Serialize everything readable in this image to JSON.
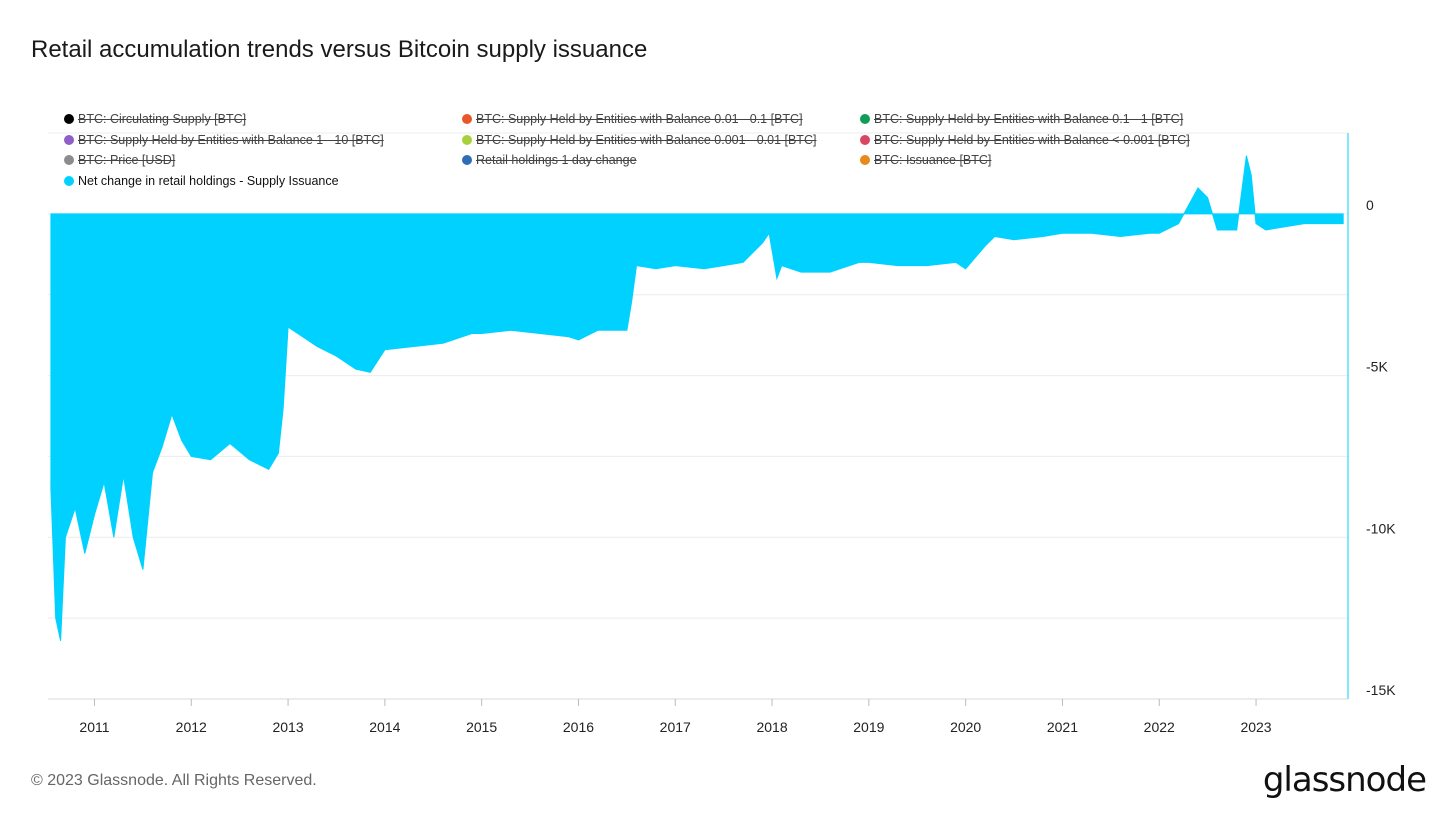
{
  "header": {
    "title": "Retail accumulation trends versus Bitcoin supply issuance"
  },
  "legend": [
    {
      "label": "BTC: Circulating Supply [BTC]",
      "color": "#000000",
      "enabled": false
    },
    {
      "label": "BTC: Supply Held by Entities with Balance 0.01 - 0.1 [BTC]",
      "color": "#e8572a",
      "enabled": false
    },
    {
      "label": "BTC: Supply Held by Entities with Balance 0.1 - 1 [BTC]",
      "color": "#0f9d58",
      "enabled": false
    },
    {
      "label": "BTC: Supply Held by Entities with Balance 1 - 10 [BTC]",
      "color": "#8e5fc7",
      "enabled": false
    },
    {
      "label": "BTC: Supply Held by Entities with Balance 0.001 - 0.01 [BTC]",
      "color": "#a6d13a",
      "enabled": false
    },
    {
      "label": "BTC: Supply Held by Entities with Balance < 0.001 [BTC]",
      "color": "#d9465f",
      "enabled": false
    },
    {
      "label": "BTC: Price [USD]",
      "color": "#8c8c8c",
      "enabled": false
    },
    {
      "label": "Retail holdings 1 day change",
      "color": "#2f6db5",
      "enabled": false
    },
    {
      "label": "BTC: Issuance [BTC]",
      "color": "#e8891a",
      "enabled": false
    },
    {
      "label": "Net change in retail holdings - Supply Issuance",
      "color": "#00d1ff",
      "enabled": true
    }
  ],
  "chart_data": {
    "type": "area",
    "title": "Retail accumulation trends versus Bitcoin supply issuance",
    "series": [
      {
        "name": "Net change in retail holdings - Supply Issuance",
        "color": "#00d1ff",
        "x": [
          2010.55,
          2010.6,
          2010.65,
          2010.7,
          2010.8,
          2010.9,
          2011.0,
          2011.1,
          2011.2,
          2011.3,
          2011.4,
          2011.5,
          2011.6,
          2011.7,
          2011.8,
          2011.9,
          2012.0,
          2012.2,
          2012.4,
          2012.6,
          2012.8,
          2012.9,
          2012.95,
          2013.0,
          2013.1,
          2013.3,
          2013.5,
          2013.7,
          2013.85,
          2014.0,
          2014.3,
          2014.6,
          2014.9,
          2015.0,
          2015.3,
          2015.6,
          2015.9,
          2016.0,
          2016.2,
          2016.5,
          2016.55,
          2016.6,
          2016.8,
          2017.0,
          2017.3,
          2017.5,
          2017.7,
          2017.9,
          2017.97,
          2018.05,
          2018.1,
          2018.3,
          2018.6,
          2018.9,
          2019.0,
          2019.3,
          2019.6,
          2019.9,
          2020.0,
          2020.2,
          2020.3,
          2020.5,
          2020.8,
          2021.0,
          2021.3,
          2021.6,
          2021.9,
          2022.0,
          2022.2,
          2022.4,
          2022.5,
          2022.6,
          2022.8,
          2022.9,
          2022.95,
          2023.0,
          2023.1,
          2023.3,
          2023.5,
          2023.7,
          2023.9
        ],
        "y": [
          -8500,
          -12500,
          -13200,
          -10000,
          -9100,
          -10500,
          -9300,
          -8300,
          -10000,
          -8100,
          -10000,
          -11000,
          -8000,
          -7200,
          -6200,
          -7000,
          -7500,
          -7600,
          -7100,
          -7600,
          -7900,
          -7400,
          -6000,
          -3500,
          -3700,
          -4100,
          -4400,
          -4800,
          -4900,
          -4200,
          -4100,
          -4000,
          -3700,
          -3700,
          -3600,
          -3700,
          -3800,
          -3900,
          -3600,
          -3600,
          -2700,
          -1600,
          -1700,
          -1600,
          -1700,
          -1600,
          -1500,
          -900,
          -600,
          -2000,
          -1600,
          -1800,
          -1800,
          -1500,
          -1500,
          -1600,
          -1600,
          -1500,
          -1700,
          -1000,
          -700,
          -800,
          -700,
          -600,
          -600,
          -700,
          -600,
          -600,
          -300,
          800,
          500,
          -500,
          -500,
          1800,
          1200,
          -300,
          -500,
          -400,
          -300,
          -300,
          -300
        ]
      }
    ],
    "xlim": [
      2010.52,
      2023.95
    ],
    "ylim": [
      -15000,
      2500
    ],
    "ticks_x": [
      "2011",
      "2012",
      "2013",
      "2014",
      "2015",
      "2016",
      "2017",
      "2018",
      "2019",
      "2020",
      "2021",
      "2022",
      "2023"
    ],
    "ticks_y": [
      {
        "value": 0,
        "label": "0"
      },
      {
        "value": -5000,
        "label": "-5K"
      },
      {
        "value": -10000,
        "label": "-10K"
      },
      {
        "value": -15000,
        "label": "-15K"
      }
    ],
    "grid": true,
    "legend_position": "top"
  },
  "footer": {
    "copyright": "© 2023 Glassnode. All Rights Reserved.",
    "brand": "glassnode"
  }
}
